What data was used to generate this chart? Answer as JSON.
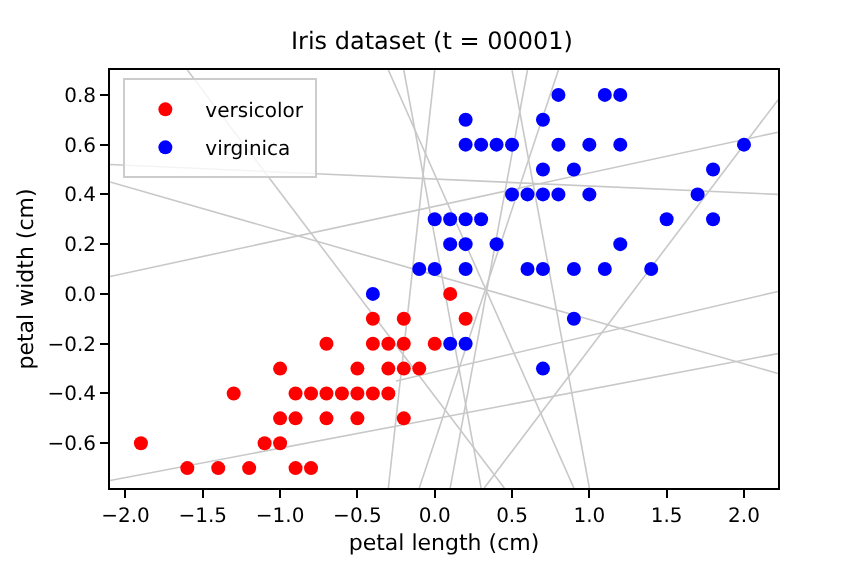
{
  "chart_data": {
    "type": "scatter",
    "title": "Iris dataset (t = 00001)",
    "xlabel": "petal length (cm)",
    "ylabel": "petal width (cm)",
    "xlim": [
      -2.1,
      2.22
    ],
    "ylim": [
      -0.78,
      0.9
    ],
    "xticks": [
      {
        "value": -2.0,
        "label": "−2.0"
      },
      {
        "value": -1.5,
        "label": "−1.5"
      },
      {
        "value": -1.0,
        "label": "−1.0"
      },
      {
        "value": -0.5,
        "label": "−0.5"
      },
      {
        "value": 0.0,
        "label": "0.0"
      },
      {
        "value": 0.5,
        "label": "0.5"
      },
      {
        "value": 1.0,
        "label": "1.0"
      },
      {
        "value": 1.5,
        "label": "1.5"
      },
      {
        "value": 2.0,
        "label": "2.0"
      }
    ],
    "yticks": [
      {
        "value": -0.6,
        "label": "−0.6"
      },
      {
        "value": -0.4,
        "label": "−0.4"
      },
      {
        "value": -0.2,
        "label": "−0.2"
      },
      {
        "value": 0.0,
        "label": "0.0"
      },
      {
        "value": 0.2,
        "label": "0.2"
      },
      {
        "value": 0.4,
        "label": "0.4"
      },
      {
        "value": 0.6,
        "label": "0.6"
      },
      {
        "value": 0.8,
        "label": "0.8"
      }
    ],
    "legend": "top left",
    "series": [
      {
        "type": "line",
        "color": "#c8c8c8",
        "x": [
          -2.1,
          2.22
        ],
        "values": [
          0.52,
          0.4
        ]
      },
      {
        "type": "line",
        "color": "#c8c8c8",
        "x": [
          -2.1,
          2.22
        ],
        "values": [
          0.07,
          0.65
        ]
      },
      {
        "type": "line",
        "color": "#c8c8c8",
        "x": [
          -2.1,
          2.22
        ],
        "values": [
          -0.75,
          -0.24
        ]
      },
      {
        "type": "line",
        "color": "#c8c8c8",
        "x": [
          -2.1,
          2.22
        ],
        "values": [
          0.45,
          -0.32
        ]
      },
      {
        "type": "line",
        "color": "#c8c8c8",
        "x": [
          -1.6,
          0.45
        ],
        "values": [
          0.9,
          -0.78
        ]
      },
      {
        "type": "line",
        "color": "#c8c8c8",
        "x": [
          -0.2,
          0.3
        ],
        "values": [
          0.9,
          -0.78
        ]
      },
      {
        "type": "line",
        "color": "#c8c8c8",
        "x": [
          0.0,
          -0.3
        ],
        "values": [
          0.9,
          -0.78
        ]
      },
      {
        "type": "line",
        "color": "#c8c8c8",
        "x": [
          0.6,
          0.1
        ],
        "values": [
          0.9,
          -0.78
        ]
      },
      {
        "type": "line",
        "color": "#c8c8c8",
        "x": [
          0.5,
          1.0
        ],
        "values": [
          0.9,
          -0.78
        ]
      },
      {
        "type": "line",
        "color": "#c8c8c8",
        "x": [
          -0.3,
          0.9
        ],
        "values": [
          0.9,
          -0.78
        ]
      },
      {
        "type": "line",
        "color": "#c8c8c8",
        "x": [
          0.8,
          -0.1
        ],
        "values": [
          0.9,
          -0.78
        ]
      },
      {
        "type": "line",
        "color": "#c8c8c8",
        "x": [
          0.32,
          2.22
        ],
        "values": [
          -0.78,
          0.78
        ]
      },
      {
        "type": "line",
        "color": "#c8c8c8",
        "x": [
          -0.25,
          2.22
        ],
        "values": [
          -0.35,
          0.01
        ]
      },
      {
        "name": "versicolor",
        "marker": "circle",
        "color": "#ff0000",
        "x": [
          -0.4,
          -0.2,
          -0.7,
          -0.4,
          -0.3,
          -0.2,
          0.0,
          -1.0,
          -0.5,
          -0.3,
          -0.2,
          -0.1,
          -1.3,
          -0.9,
          -0.8,
          -0.7,
          -0.6,
          -0.5,
          -0.4,
          -0.3,
          -1.0,
          -0.9,
          -0.7,
          -0.5,
          -0.2,
          -1.9,
          -1.1,
          -1.0,
          -1.6,
          -1.4,
          -1.2,
          -0.9,
          -0.8,
          0.1,
          0.2
        ],
        "values": [
          -0.1,
          -0.1,
          -0.2,
          -0.2,
          -0.2,
          -0.2,
          -0.2,
          -0.3,
          -0.3,
          -0.3,
          -0.3,
          -0.3,
          -0.4,
          -0.4,
          -0.4,
          -0.4,
          -0.4,
          -0.4,
          -0.4,
          -0.4,
          -0.5,
          -0.5,
          -0.5,
          -0.5,
          -0.5,
          -0.6,
          -0.6,
          -0.6,
          -0.7,
          -0.7,
          -0.7,
          -0.7,
          -0.7,
          0.0,
          -0.1
        ]
      },
      {
        "name": "virginica",
        "marker": "circle",
        "color": "#0000ff",
        "x": [
          0.8,
          1.1,
          1.2,
          0.2,
          0.7,
          0.2,
          0.3,
          0.4,
          0.5,
          0.8,
          1.0,
          1.2,
          2.0,
          0.7,
          0.9,
          1.8,
          0.5,
          0.6,
          0.7,
          0.8,
          1.0,
          1.7,
          0.0,
          0.1,
          0.2,
          0.3,
          1.5,
          1.8,
          0.1,
          0.2,
          0.4,
          1.2,
          -0.1,
          0.0,
          0.2,
          0.6,
          0.7,
          0.9,
          1.1,
          1.4,
          -0.4,
          0.1,
          0.2,
          0.9,
          0.7
        ],
        "values": [
          0.8,
          0.8,
          0.8,
          0.7,
          0.7,
          0.6,
          0.6,
          0.6,
          0.6,
          0.6,
          0.6,
          0.6,
          0.6,
          0.5,
          0.5,
          0.5,
          0.4,
          0.4,
          0.4,
          0.4,
          0.4,
          0.4,
          0.3,
          0.3,
          0.3,
          0.3,
          0.3,
          0.3,
          0.2,
          0.2,
          0.2,
          0.2,
          0.1,
          0.1,
          0.1,
          0.1,
          0.1,
          0.1,
          0.1,
          0.1,
          0.0,
          -0.2,
          -0.2,
          -0.1,
          -0.3
        ]
      }
    ]
  }
}
